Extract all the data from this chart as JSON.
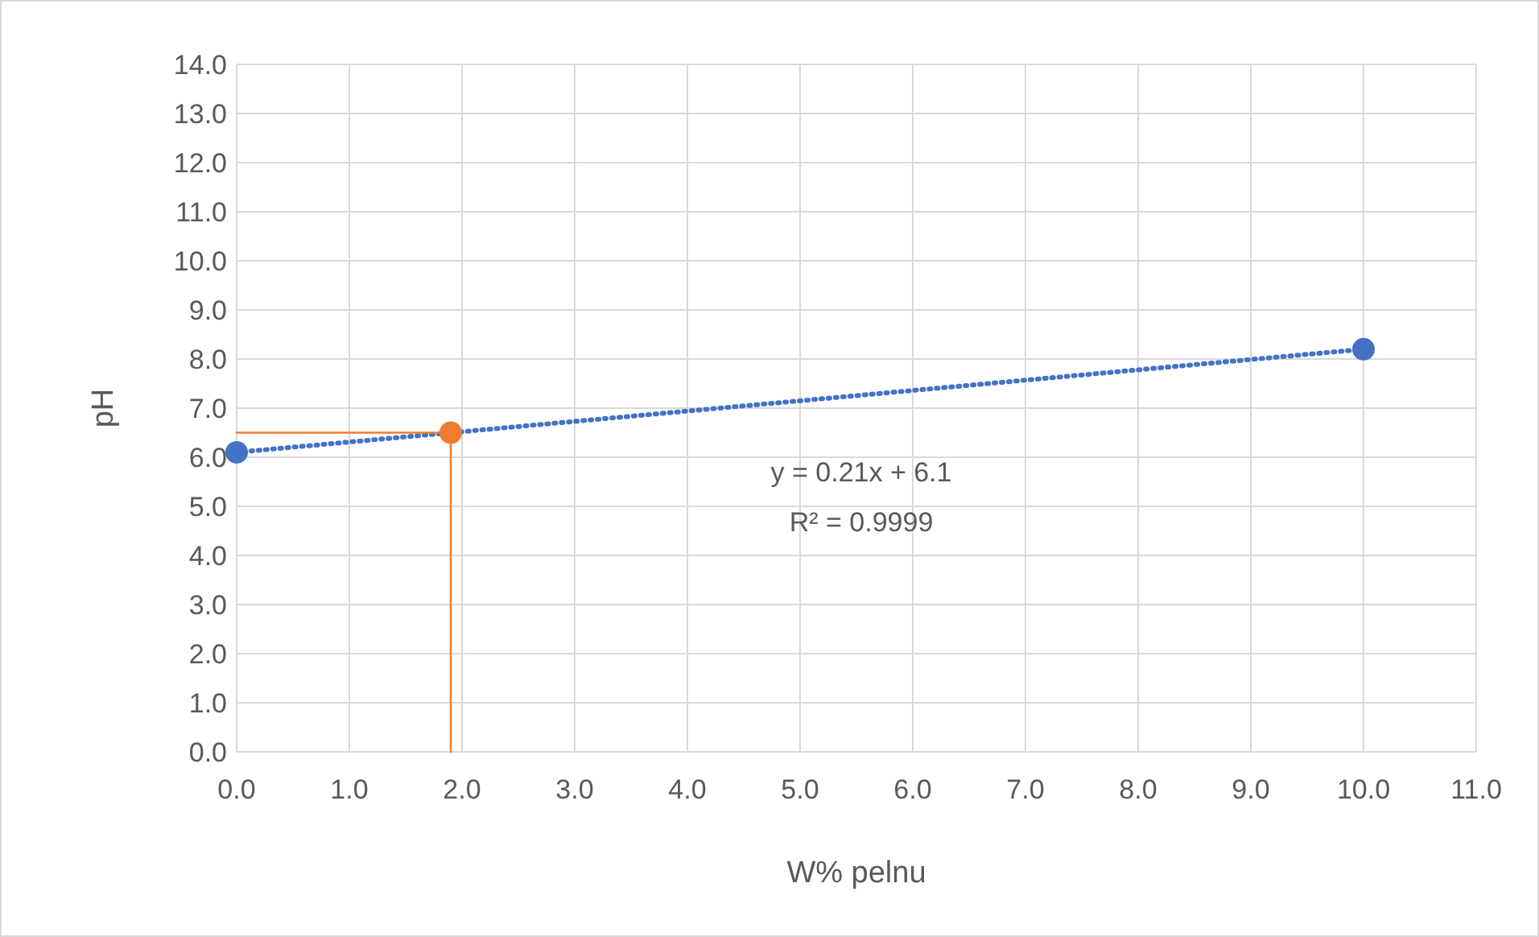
{
  "chart_data": {
    "type": "scatter",
    "xlabel": "W% pelnu",
    "ylabel": "pH",
    "xlim": [
      0,
      11
    ],
    "xticks": [
      {
        "value": 0,
        "label": "0.0"
      },
      {
        "value": 1,
        "label": "1.0"
      },
      {
        "value": 2,
        "label": "2.0"
      },
      {
        "value": 3,
        "label": "3.0"
      },
      {
        "value": 4,
        "label": "4.0"
      },
      {
        "value": 5,
        "label": "5.0"
      },
      {
        "value": 6,
        "label": "6.0"
      },
      {
        "value": 7,
        "label": "7.0"
      },
      {
        "value": 8,
        "label": "8.0"
      },
      {
        "value": 9,
        "label": "9.0"
      },
      {
        "value": 10,
        "label": "10.0"
      },
      {
        "value": 11,
        "label": "11.0"
      }
    ],
    "ylim": [
      0,
      14
    ],
    "yticks": [
      {
        "value": 0,
        "label": "0.0"
      },
      {
        "value": 1,
        "label": "1.0"
      },
      {
        "value": 2,
        "label": "2.0"
      },
      {
        "value": 3,
        "label": "3.0"
      },
      {
        "value": 4,
        "label": "4.0"
      },
      {
        "value": 5,
        "label": "5.0"
      },
      {
        "value": 6,
        "label": "6.0"
      },
      {
        "value": 7,
        "label": "7.0"
      },
      {
        "value": 8,
        "label": "8.0"
      },
      {
        "value": 9,
        "label": "9.0"
      },
      {
        "value": 10,
        "label": "10.0"
      },
      {
        "value": 11,
        "label": "11.0"
      },
      {
        "value": 12,
        "label": "12.0"
      },
      {
        "value": 13,
        "label": "13.0"
      },
      {
        "value": 14,
        "label": "14.0"
      }
    ],
    "grid": true,
    "marker": "circle",
    "series": [
      {
        "type": "line",
        "color": "#4472c4",
        "line_style": "dotted",
        "marker": "none",
        "x": [
          0,
          10
        ],
        "values": [
          6.1,
          8.2
        ]
      },
      {
        "type": "line",
        "color": "#ed7d31",
        "line_style": "solid",
        "marker": "none",
        "x": [
          0,
          1.9,
          1.9
        ],
        "values": [
          6.5,
          6.5,
          0
        ]
      },
      {
        "color": "#4472c4",
        "x": [
          0,
          10
        ],
        "values": [
          6.1,
          8.2
        ]
      },
      {
        "color": "#ed7d31",
        "x": [
          1.9
        ],
        "values": [
          6.5
        ]
      }
    ],
    "annotations": [
      "y = 0.21x + 6.1",
      "R² = 0.9999"
    ]
  }
}
